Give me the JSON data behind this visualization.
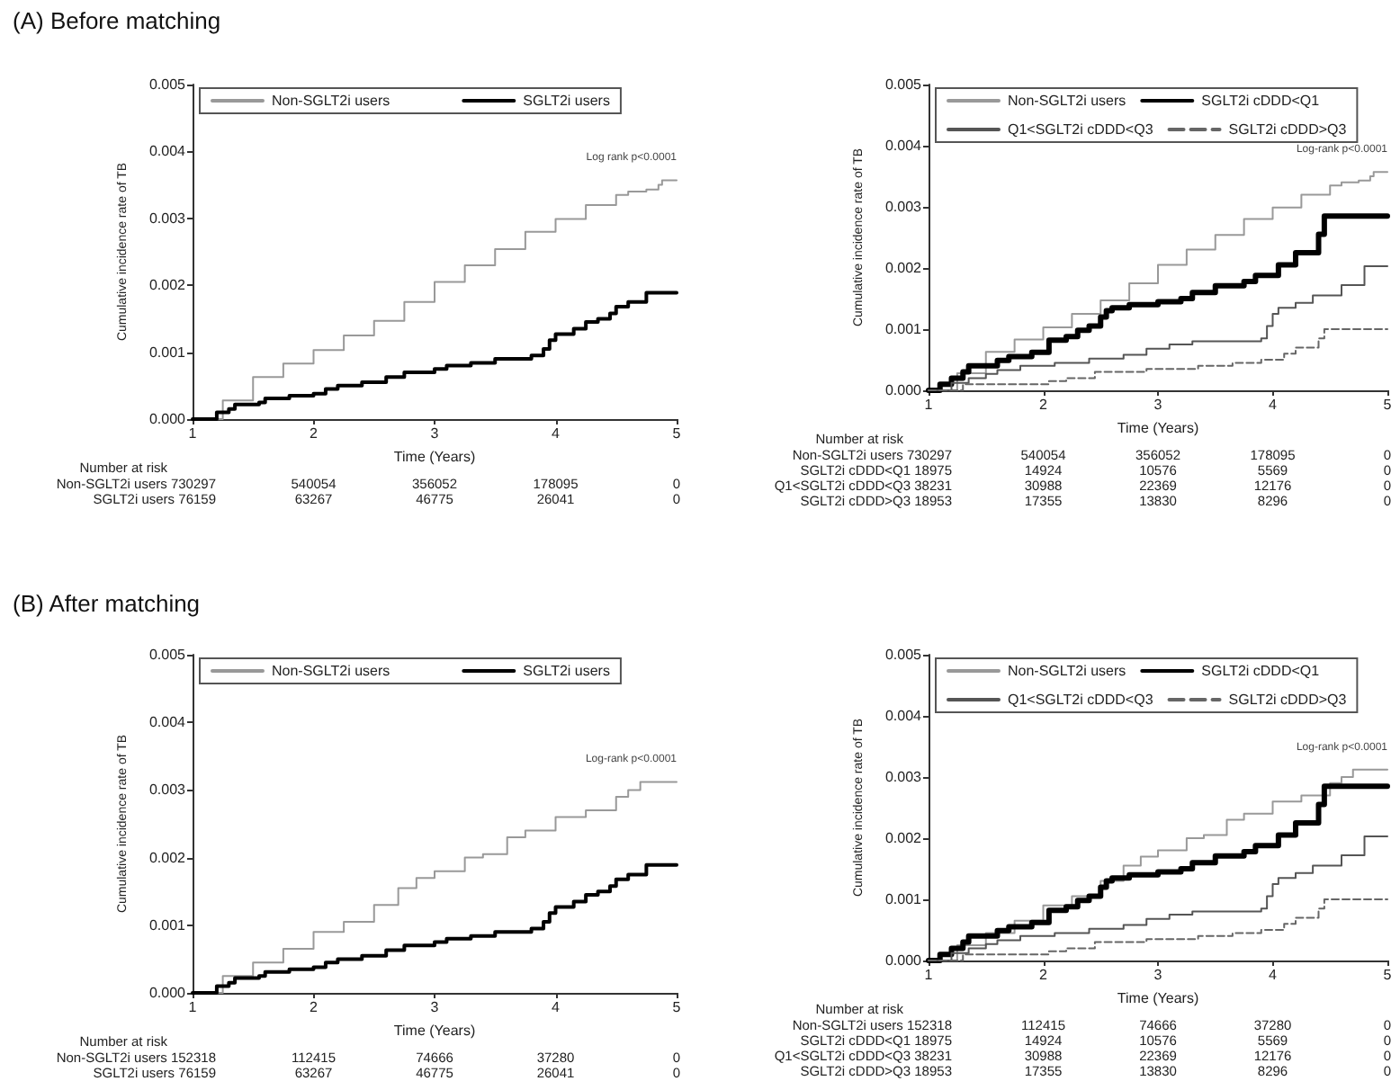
{
  "chart_data": [
    {
      "type": "step",
      "title": "(A) Before matching",
      "xlabel": "Time (Years)",
      "ylabel": "Cumulative incidence rate of TB",
      "xlim": [
        1,
        5
      ],
      "xticks": [
        1,
        2,
        3,
        4,
        5
      ],
      "ylim": [
        0,
        0.005
      ],
      "yticks": [
        {
          "value": 0,
          "label": "0.000"
        },
        {
          "value": 0.001,
          "label": "0.001"
        },
        {
          "value": 0.002,
          "label": "0.002"
        },
        {
          "value": 0.003,
          "label": "0.003"
        },
        {
          "value": 0.004,
          "label": "0.004"
        },
        {
          "value": 0.005,
          "label": "0.005"
        }
      ],
      "grid": false,
      "legend": "top",
      "marker": "none",
      "annotations": [
        "Log rank p<0.0001",
        "Number at risk",
        "Non-SGLT2i users 730297 540054 356052 178095 0",
        "SGLT2i users 76159 63267 46775 26041 0"
      ],
      "series": [
        {
          "name": "Non-SGLT2i users",
          "color": "#999999",
          "x": [
            1,
            1.25,
            1.5,
            1.75,
            2,
            2.25,
            2.5,
            2.75,
            3,
            3.25,
            3.5,
            3.75,
            4,
            4.25,
            4.5,
            4.6,
            4.75,
            4.85,
            4.88,
            5
          ],
          "values": [
            0,
            0.00028,
            0.00063,
            0.00083,
            0.00103,
            0.00125,
            0.00147,
            0.00175,
            0.00205,
            0.0023,
            0.00254,
            0.0028,
            0.00299,
            0.0032,
            0.00335,
            0.0034,
            0.00343,
            0.0035,
            0.00357,
            0.00358
          ]
        },
        {
          "name": "SGLT2i users",
          "color": "#000000",
          "x": [
            1,
            1.2,
            1.3,
            1.35,
            1.55,
            1.6,
            1.8,
            2,
            2.1,
            2.2,
            2.4,
            2.6,
            2.75,
            3,
            3.1,
            3.3,
            3.5,
            3.8,
            3.9,
            3.95,
            4,
            4.15,
            4.25,
            4.35,
            4.45,
            4.5,
            4.6,
            4.75,
            5
          ],
          "values": [
            0,
            0.0001,
            0.00015,
            0.00022,
            0.00025,
            0.00031,
            0.00035,
            0.00038,
            0.00045,
            0.0005,
            0.00055,
            0.00063,
            0.0007,
            0.00075,
            0.0008,
            0.00084,
            0.0009,
            0.00095,
            0.00105,
            0.00118,
            0.00127,
            0.00135,
            0.00145,
            0.0015,
            0.00158,
            0.00168,
            0.00175,
            0.00189,
            0.0019
          ]
        }
      ]
    },
    {
      "type": "step",
      "xlabel": "Time (Years)",
      "ylabel": "Cumulative incidence rate of TB",
      "xlim": [
        1,
        5
      ],
      "xticks": [
        1,
        2,
        3,
        4,
        5
      ],
      "ylim": [
        0,
        0.005
      ],
      "yticks": [
        {
          "value": 0,
          "label": "0.000"
        },
        {
          "value": 0.001,
          "label": "0.001"
        },
        {
          "value": 0.002,
          "label": "0.002"
        },
        {
          "value": 0.003,
          "label": "0.003"
        },
        {
          "value": 0.004,
          "label": "0.004"
        },
        {
          "value": 0.005,
          "label": "0.005"
        }
      ],
      "grid": false,
      "legend": "top",
      "marker": "none",
      "annotations": [
        "Log-rank p<0.0001",
        "Number at risk",
        "Non-SGLT2i users 730297 540054 356052 178095 0",
        "SGLT2i cDDD<Q1 18975 14924 10576 5569 0",
        "Q1<SGLT2i cDDD<Q3 38231 30988 22369 12176 0",
        "SGLT2i cDDD>Q3 18953 17355 13830 8296 0"
      ],
      "series": [
        {
          "name": "Non-SGLT2i users",
          "color": "#999999",
          "x": [
            1,
            1.25,
            1.5,
            1.75,
            2,
            2.25,
            2.5,
            2.75,
            3,
            3.25,
            3.5,
            3.75,
            4,
            4.25,
            4.5,
            4.6,
            4.75,
            4.85,
            4.88,
            5
          ],
          "values": [
            0,
            0.00028,
            0.00063,
            0.00083,
            0.00103,
            0.00125,
            0.00147,
            0.00175,
            0.00205,
            0.0023,
            0.00254,
            0.0028,
            0.00299,
            0.0032,
            0.00335,
            0.0034,
            0.00343,
            0.0035,
            0.00357,
            0.00358
          ]
        },
        {
          "name": "SGLT2i cDDD<Q1",
          "color": "#000000",
          "x": [
            1,
            1.1,
            1.2,
            1.3,
            1.35,
            1.6,
            1.7,
            1.9,
            2.05,
            2.2,
            2.3,
            2.4,
            2.5,
            2.55,
            2.6,
            2.75,
            3,
            3.2,
            3.3,
            3.5,
            3.75,
            3.85,
            4.05,
            4.2,
            4.4,
            4.45,
            5
          ],
          "values": [
            0,
            0.0001,
            0.0002,
            0.0003,
            0.0004,
            0.00049,
            0.00055,
            0.00062,
            0.00082,
            0.00088,
            0.00098,
            0.00105,
            0.0012,
            0.0013,
            0.00135,
            0.0014,
            0.00145,
            0.0015,
            0.0016,
            0.00171,
            0.00178,
            0.00188,
            0.00205,
            0.00225,
            0.00255,
            0.00285,
            0.00285
          ]
        },
        {
          "name": "Q1<SGLT2i cDDD<Q3",
          "color": "#555555",
          "x": [
            1,
            1.2,
            1.35,
            1.5,
            1.6,
            1.8,
            2.1,
            2.4,
            2.7,
            2.9,
            3.1,
            3.3,
            3.9,
            3.95,
            4,
            4.05,
            4.2,
            4.35,
            4.6,
            4.8,
            5
          ],
          "values": [
            0,
            0.00012,
            0.0002,
            0.00027,
            0.00033,
            0.0004,
            0.00045,
            0.00052,
            0.00058,
            0.00068,
            0.00075,
            0.0008,
            0.00085,
            0.00105,
            0.00125,
            0.00135,
            0.00143,
            0.00155,
            0.00172,
            0.00203,
            0.00203
          ]
        },
        {
          "name": "SGLT2i cDDD>Q3",
          "color": "#666666",
          "line_style": "dashed",
          "x": [
            1,
            1.3,
            2.05,
            2.2,
            2.45,
            2.9,
            3.35,
            3.65,
            3.9,
            4.1,
            4.2,
            4.4,
            4.45,
            5
          ],
          "values": [
            0,
            0.0001,
            0.00015,
            0.0002,
            0.0003,
            0.00035,
            0.0004,
            0.00045,
            0.0005,
            0.0006,
            0.0007,
            0.00085,
            0.001,
            0.001
          ]
        }
      ]
    },
    {
      "type": "step",
      "title": "(B) After matching",
      "xlabel": "Time (Years)",
      "ylabel": "Cumulative incidence rate of TB",
      "xlim": [
        1,
        5
      ],
      "xticks": [
        1,
        2,
        3,
        4,
        5
      ],
      "ylim": [
        0,
        0.005
      ],
      "yticks": [
        {
          "value": 0,
          "label": "0.000"
        },
        {
          "value": 0.001,
          "label": "0.001"
        },
        {
          "value": 0.002,
          "label": "0.002"
        },
        {
          "value": 0.003,
          "label": "0.003"
        },
        {
          "value": 0.004,
          "label": "0.004"
        },
        {
          "value": 0.005,
          "label": "0.005"
        }
      ],
      "grid": false,
      "legend": "top",
      "marker": "none",
      "annotations": [
        "Log-rank p<0.0001",
        "Number at risk",
        "Non-SGLT2i users 152318 112415 74666 37280 0",
        "SGLT2i users 76159 63267 46775 26041 0"
      ],
      "series": [
        {
          "name": "Non-SGLT2i users",
          "color": "#999999",
          "x": [
            1,
            1.25,
            1.5,
            1.75,
            2,
            2.25,
            2.5,
            2.7,
            2.85,
            3,
            3.25,
            3.4,
            3.6,
            3.75,
            4,
            4.25,
            4.5,
            4.6,
            4.7,
            5
          ],
          "values": [
            0,
            0.00025,
            0.00045,
            0.00065,
            0.0009,
            0.00105,
            0.0013,
            0.00155,
            0.0017,
            0.0018,
            0.002,
            0.00205,
            0.0023,
            0.0024,
            0.0026,
            0.0027,
            0.0029,
            0.003,
            0.00312,
            0.00312
          ]
        },
        {
          "name": "SGLT2i users",
          "color": "#000000",
          "x": [
            1,
            1.2,
            1.3,
            1.35,
            1.55,
            1.6,
            1.8,
            2,
            2.1,
            2.2,
            2.4,
            2.6,
            2.75,
            3,
            3.1,
            3.3,
            3.5,
            3.8,
            3.9,
            3.95,
            4,
            4.15,
            4.25,
            4.35,
            4.45,
            4.5,
            4.6,
            4.75,
            5
          ],
          "values": [
            0,
            0.0001,
            0.00015,
            0.00022,
            0.00025,
            0.00031,
            0.00035,
            0.00038,
            0.00045,
            0.0005,
            0.00055,
            0.00063,
            0.0007,
            0.00075,
            0.0008,
            0.00084,
            0.0009,
            0.00095,
            0.00105,
            0.00118,
            0.00127,
            0.00135,
            0.00145,
            0.0015,
            0.00158,
            0.00168,
            0.00175,
            0.00189,
            0.0019
          ]
        }
      ]
    },
    {
      "type": "step",
      "xlabel": "Time (Years)",
      "ylabel": "Cumulative incidence rate of TB",
      "xlim": [
        1,
        5
      ],
      "xticks": [
        1,
        2,
        3,
        4,
        5
      ],
      "ylim": [
        0,
        0.005
      ],
      "yticks": [
        {
          "value": 0,
          "label": "0.000"
        },
        {
          "value": 0.001,
          "label": "0.001"
        },
        {
          "value": 0.002,
          "label": "0.002"
        },
        {
          "value": 0.003,
          "label": "0.003"
        },
        {
          "value": 0.004,
          "label": "0.004"
        },
        {
          "value": 0.005,
          "label": "0.005"
        }
      ],
      "grid": false,
      "legend": "top",
      "marker": "none",
      "annotations": [
        "Log-rank p<0.0001",
        "Number at risk",
        "Non-SGLT2i users 152318 112415 74666 37280 0",
        "SGLT2i cDDD<Q1 18975 14924 10576 5569 0",
        "Q1<SGLT2i cDDD<Q3 38231 30988 22369 12176 0",
        "SGLT2i cDDD>Q3 18953 17355 13830 8296 0"
      ],
      "series": [
        {
          "name": "Non-SGLT2i users",
          "color": "#999999",
          "x": [
            1,
            1.25,
            1.5,
            1.75,
            2,
            2.25,
            2.5,
            2.7,
            2.85,
            3,
            3.25,
            3.4,
            3.6,
            3.75,
            4,
            4.25,
            4.5,
            4.6,
            4.7,
            5
          ],
          "values": [
            0,
            0.00025,
            0.00045,
            0.00065,
            0.0009,
            0.00105,
            0.0013,
            0.00155,
            0.0017,
            0.0018,
            0.002,
            0.00205,
            0.0023,
            0.0024,
            0.0026,
            0.0027,
            0.0029,
            0.003,
            0.00312,
            0.00312
          ]
        },
        {
          "name": "SGLT2i cDDD<Q1",
          "color": "#000000",
          "x": [
            1,
            1.1,
            1.2,
            1.3,
            1.35,
            1.6,
            1.7,
            1.9,
            2.05,
            2.2,
            2.3,
            2.4,
            2.5,
            2.55,
            2.6,
            2.75,
            3,
            3.2,
            3.3,
            3.5,
            3.75,
            3.85,
            4.05,
            4.2,
            4.4,
            4.45,
            5
          ],
          "values": [
            0,
            0.0001,
            0.0002,
            0.0003,
            0.0004,
            0.00049,
            0.00055,
            0.00062,
            0.00082,
            0.00088,
            0.00098,
            0.00105,
            0.0012,
            0.0013,
            0.00135,
            0.0014,
            0.00145,
            0.0015,
            0.0016,
            0.00171,
            0.00178,
            0.00188,
            0.00205,
            0.00225,
            0.00255,
            0.00285,
            0.00285
          ]
        },
        {
          "name": "Q1<SGLT2i cDDD<Q3",
          "color": "#555555",
          "x": [
            1,
            1.2,
            1.35,
            1.5,
            1.6,
            1.8,
            2.1,
            2.4,
            2.7,
            2.9,
            3.1,
            3.3,
            3.9,
            3.95,
            4,
            4.05,
            4.2,
            4.35,
            4.6,
            4.8,
            5
          ],
          "values": [
            0,
            0.00012,
            0.0002,
            0.00027,
            0.00033,
            0.0004,
            0.00045,
            0.00052,
            0.00058,
            0.00068,
            0.00075,
            0.0008,
            0.00085,
            0.00105,
            0.00125,
            0.00135,
            0.00143,
            0.00155,
            0.00172,
            0.00203,
            0.00203
          ]
        },
        {
          "name": "SGLT2i cDDD>Q3",
          "color": "#666666",
          "line_style": "dashed",
          "x": [
            1,
            1.3,
            2.05,
            2.2,
            2.45,
            2.9,
            3.35,
            3.65,
            3.9,
            4.1,
            4.2,
            4.4,
            4.45,
            5
          ],
          "values": [
            0,
            0.0001,
            0.00015,
            0.0002,
            0.0003,
            0.00035,
            0.0004,
            0.00045,
            0.0005,
            0.0006,
            0.0007,
            0.00085,
            0.001,
            0.001
          ]
        }
      ]
    }
  ]
}
